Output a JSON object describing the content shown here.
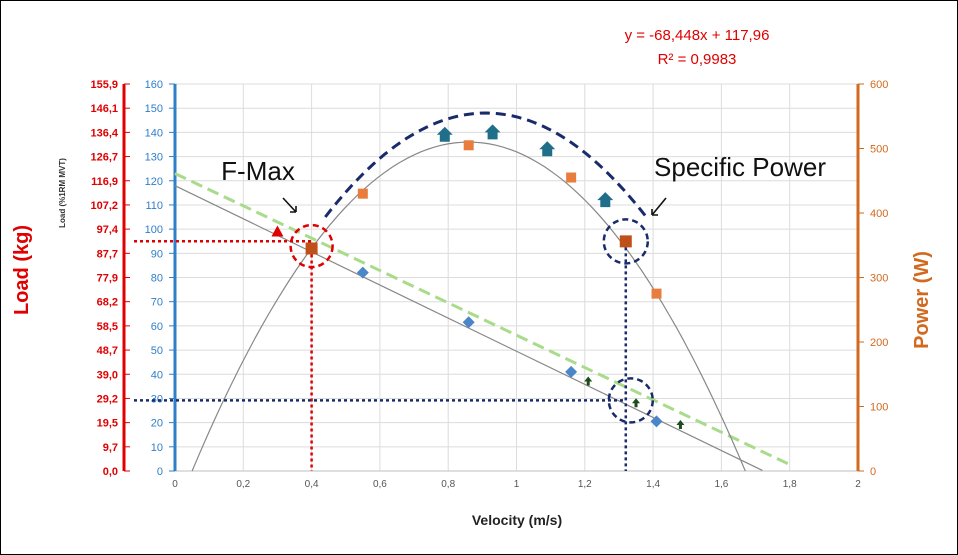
{
  "chart_data": {
    "type": "scatter",
    "title": "",
    "xlabel": "Velocity (m/s)",
    "ylabel_left_outer": "Load (kg)",
    "ylabel_left_inner": "Load (%1RM MVT)",
    "ylabel_right": "Power (W)",
    "xlim": [
      0,
      2
    ],
    "x_ticks": [
      "0",
      "0,2",
      "0,4",
      "0,6",
      "0,8",
      "1",
      "1,2",
      "1,4",
      "1,6",
      "1,8",
      "2"
    ],
    "y_inner_lim": [
      0,
      160
    ],
    "y_inner_ticks": [
      "0",
      "10",
      "20",
      "30",
      "40",
      "50",
      "60",
      "70",
      "80",
      "90",
      "100",
      "110",
      "120",
      "130",
      "140",
      "150",
      "160"
    ],
    "y_outer_ticks": [
      "0,0",
      "9,7",
      "19,5",
      "29,2",
      "39,0",
      "48,7",
      "58,5",
      "68,2",
      "77,9",
      "87,7",
      "97,4",
      "107,2",
      "116,9",
      "126,7",
      "136,4",
      "146,1",
      "155,9"
    ],
    "y_right_lim": [
      0,
      600
    ],
    "y_right_ticks": [
      "0",
      "100",
      "200",
      "300",
      "400",
      "500",
      "600"
    ],
    "equation": "y = -68,448x + 117,96",
    "r_squared": "R² = 0,9983",
    "callouts": {
      "fmax": "F-Max",
      "specific_power": "Specific Power"
    },
    "series": [
      {
        "type": "scatter",
        "marker": "diamond",
        "color": "#4a86c8",
        "axis": "inner",
        "x": [
          0.55,
          0.86,
          1.16,
          1.41
        ],
        "y": [
          82,
          61.5,
          41,
          20.5
        ]
      },
      {
        "type": "scatter",
        "marker": "square",
        "color": "#e87d3e",
        "axis": "right",
        "x": [
          0.55,
          0.86,
          1.16,
          1.41
        ],
        "y": [
          430,
          505,
          455,
          275
        ]
      },
      {
        "type": "scatter",
        "marker": "square-highlight",
        "color": "#c0501a",
        "axis": "right",
        "x": [
          0.4,
          1.32
        ],
        "y": [
          345,
          356
        ]
      },
      {
        "type": "scatter",
        "marker": "house",
        "color": "#1f6f8b",
        "axis": "inner",
        "x": [
          0.79,
          0.93,
          1.09,
          1.26
        ],
        "y": [
          139,
          140,
          133,
          112
        ]
      },
      {
        "type": "scatter",
        "marker": "triangle",
        "color": "#e00000",
        "axis": "inner",
        "x": [
          0.3
        ],
        "y": [
          99
        ]
      },
      {
        "type": "scatter",
        "marker": "small-arrow",
        "color": "#1b4d1b",
        "axis": "inner",
        "x": [
          1.21,
          1.35,
          1.48
        ],
        "y": [
          37,
          28,
          19
        ]
      },
      {
        "type": "line",
        "style": "solid-gray",
        "color": "#888888",
        "axis": "inner",
        "slope": -68.448,
        "intercept": 117.96,
        "x_range": [
          0,
          1.72
        ]
      },
      {
        "type": "line",
        "style": "dashed-green",
        "color": "#a8dc8a",
        "axis": "inner",
        "x": [
          0,
          1.81
        ],
        "y": [
          123,
          2
        ]
      },
      {
        "type": "curve",
        "style": "parabola-gray",
        "color": "#888888",
        "axis": "right",
        "x_range": [
          0.05,
          1.67
        ],
        "vertex": [
          0.86,
          510
        ]
      },
      {
        "type": "curve",
        "style": "dashed-arc-navy",
        "color": "#1a2b6b",
        "axis": "inner",
        "x_range": [
          0.44,
          1.38
        ],
        "vertex": [
          0.91,
          148
        ],
        "y_end": 105
      }
    ]
  }
}
